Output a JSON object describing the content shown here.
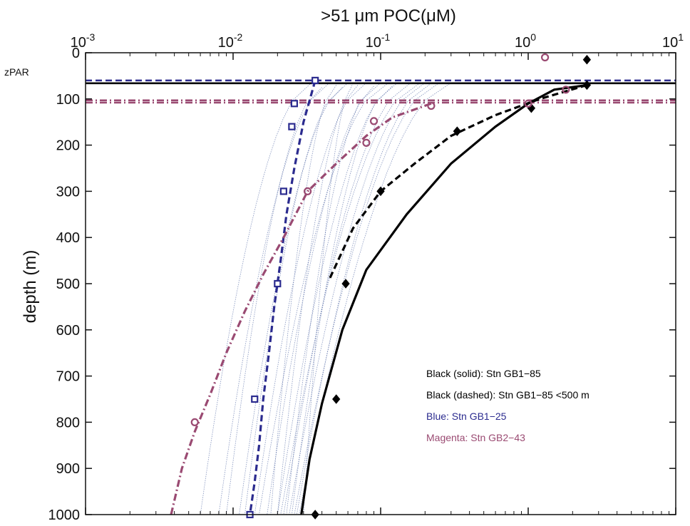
{
  "chart_data": {
    "type": "scatter",
    "title": ">51 μm POC(μM)",
    "ylabel": "depth (m)",
    "x_scale": "log",
    "xlim": [
      0.001,
      10
    ],
    "ylim": [
      1000,
      0
    ],
    "x_tick_labels": [
      {
        "base": "10",
        "exp": "-3",
        "value": 0.001
      },
      {
        "base": "10",
        "exp": "-2",
        "value": 0.01
      },
      {
        "base": "10",
        "exp": "-1",
        "value": 0.1
      },
      {
        "base": "10",
        "exp": "0",
        "value": 1
      },
      {
        "base": "10",
        "exp": "1",
        "value": 10
      }
    ],
    "y_ticks": [
      0,
      100,
      200,
      300,
      400,
      500,
      600,
      700,
      800,
      900,
      1000
    ],
    "y_tick_labels": [
      "0",
      "100",
      "200",
      "300",
      "400",
      "500",
      "600",
      "700",
      "800",
      "900",
      "1000"
    ],
    "zpar_label": "zPAR",
    "grid": false,
    "legend_position": "lower-right",
    "legend": [
      {
        "label": "Black (solid): Stn GB1−85",
        "color": "#000000"
      },
      {
        "label": "Black (dashed): Stn GB1−85 <500 m",
        "color": "#000000"
      },
      {
        "label": "Blue: Stn GB1−25",
        "color": "#2b2b8f"
      },
      {
        "label": "Magenta: Stn GB2−43",
        "color": "#9a4a72"
      }
    ],
    "series": [
      {
        "station": "GB1-85",
        "color": "#000000",
        "marker": "diamond",
        "points": [
          [
            2.5,
            15
          ],
          [
            2.5,
            70
          ],
          [
            1.05,
            120
          ],
          [
            0.33,
            170
          ],
          [
            0.1,
            300
          ],
          [
            0.058,
            500
          ],
          [
            0.05,
            750
          ],
          [
            0.036,
            1000
          ]
        ]
      },
      {
        "station": "GB1-25",
        "color": "#2b2b8f",
        "marker": "square",
        "points": [
          [
            0.036,
            60
          ],
          [
            0.026,
            110
          ],
          [
            0.025,
            160
          ],
          [
            0.022,
            300
          ],
          [
            0.02,
            500
          ],
          [
            0.014,
            750
          ],
          [
            0.013,
            1000
          ]
        ]
      },
      {
        "station": "GB2-43",
        "color": "#9a4a72",
        "marker": "circle",
        "points": [
          [
            1.3,
            10
          ],
          [
            1.8,
            80
          ],
          [
            1.0,
            110
          ],
          [
            0.22,
            115
          ],
          [
            0.09,
            148
          ],
          [
            0.08,
            195
          ],
          [
            0.032,
            300
          ],
          [
            0.0055,
            800
          ]
        ]
      }
    ],
    "fits": [
      {
        "station": "GB1-85 solid",
        "color": "#000000",
        "dash": "solid",
        "points": [
          [
            2.5,
            70
          ],
          [
            1.5,
            80
          ],
          [
            1.0,
            110
          ],
          [
            0.6,
            160
          ],
          [
            0.3,
            240
          ],
          [
            0.15,
            350
          ],
          [
            0.08,
            470
          ],
          [
            0.055,
            600
          ],
          [
            0.04,
            760
          ],
          [
            0.033,
            880
          ],
          [
            0.029,
            1000
          ]
        ]
      },
      {
        "station": "GB1-85 dashed <500 m",
        "color": "#000000",
        "dash": "dashed",
        "points": [
          [
            2.5,
            70
          ],
          [
            1.2,
            100
          ],
          [
            0.6,
            135
          ],
          [
            0.3,
            180
          ],
          [
            0.17,
            240
          ],
          [
            0.1,
            300
          ],
          [
            0.065,
            380
          ],
          [
            0.045,
            490
          ]
        ]
      },
      {
        "station": "GB1-25",
        "color": "#2b2b8f",
        "dash": "dashed",
        "points": [
          [
            0.036,
            60
          ],
          [
            0.03,
            150
          ],
          [
            0.026,
            250
          ],
          [
            0.023,
            350
          ],
          [
            0.021,
            450
          ],
          [
            0.019,
            550
          ],
          [
            0.0175,
            650
          ],
          [
            0.016,
            750
          ],
          [
            0.015,
            850
          ],
          [
            0.014,
            930
          ],
          [
            0.013,
            1000
          ]
        ]
      },
      {
        "station": "GB2-43",
        "color": "#9a4a72",
        "dash": "dashdot",
        "points": [
          [
            0.22,
            110
          ],
          [
            0.12,
            140
          ],
          [
            0.08,
            180
          ],
          [
            0.05,
            240
          ],
          [
            0.032,
            300
          ],
          [
            0.022,
            400
          ],
          [
            0.016,
            480
          ],
          [
            0.012,
            560
          ],
          [
            0.009,
            650
          ],
          [
            0.007,
            740
          ],
          [
            0.0055,
            820
          ],
          [
            0.0045,
            900
          ],
          [
            0.0038,
            1000
          ]
        ]
      }
    ],
    "reference_lines": [
      {
        "depth": 60,
        "color": "#2b2b8f",
        "dash": "dashed"
      },
      {
        "depth": 66,
        "color": "#000000",
        "dash": "solid"
      },
      {
        "depth": 103,
        "color": "#9a4a72",
        "dash": "dashdot"
      },
      {
        "depth": 108,
        "color": "#9a4a72",
        "dash": "dashdot"
      }
    ],
    "thin_curves": {
      "color": "#5a6fa8",
      "curves": [
        {
          "x0": 0.034,
          "d0": 65,
          "xend": 0.006,
          "dend": 1000
        },
        {
          "x0": 0.045,
          "d0": 65,
          "xend": 0.008,
          "dend": 1000
        },
        {
          "x0": 0.06,
          "d0": 65,
          "xend": 0.011,
          "dend": 1000
        },
        {
          "x0": 0.08,
          "d0": 65,
          "xend": 0.014,
          "dend": 1000
        },
        {
          "x0": 0.1,
          "d0": 65,
          "xend": 0.017,
          "dend": 1000
        },
        {
          "x0": 0.13,
          "d0": 65,
          "xend": 0.02,
          "dend": 1000
        },
        {
          "x0": 0.16,
          "d0": 65,
          "xend": 0.022,
          "dend": 1000
        },
        {
          "x0": 0.2,
          "d0": 65,
          "xend": 0.024,
          "dend": 1000
        },
        {
          "x0": 0.25,
          "d0": 65,
          "xend": 0.026,
          "dend": 1000
        },
        {
          "x0": 0.3,
          "d0": 65,
          "xend": 0.028,
          "dend": 1000
        },
        {
          "x0": 0.05,
          "d0": 70,
          "xend": 0.018,
          "dend": 1000
        },
        {
          "x0": 0.07,
          "d0": 70,
          "xend": 0.02,
          "dend": 1000
        },
        {
          "x0": 0.09,
          "d0": 72,
          "xend": 0.023,
          "dend": 1000
        },
        {
          "x0": 0.12,
          "d0": 72,
          "xend": 0.025,
          "dend": 1000
        },
        {
          "x0": 0.04,
          "d0": 75,
          "xend": 0.009,
          "dend": 1000
        },
        {
          "x0": 0.055,
          "d0": 75,
          "xend": 0.012,
          "dend": 1000
        },
        {
          "x0": 0.11,
          "d0": 68,
          "xend": 0.015,
          "dend": 1000
        },
        {
          "x0": 0.18,
          "d0": 68,
          "xend": 0.021,
          "dend": 1000
        },
        {
          "x0": 0.22,
          "d0": 66,
          "xend": 0.027,
          "dend": 1000
        },
        {
          "x0": 0.065,
          "d0": 66,
          "xend": 0.03,
          "dend": 1000
        }
      ]
    }
  }
}
